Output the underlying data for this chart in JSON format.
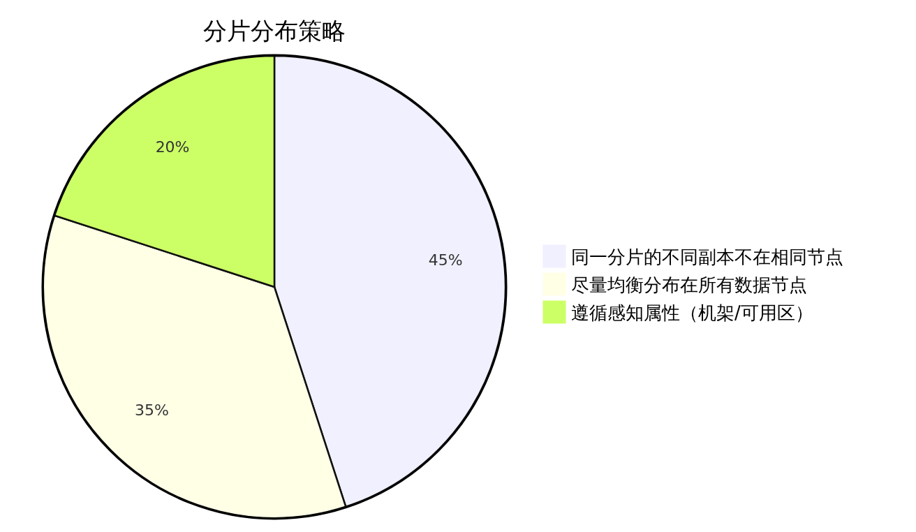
{
  "chart_data": {
    "type": "pie",
    "title": "分片分布策略",
    "categories": [
      "同一分片的不同副本不在相同节点",
      "尽量均衡分布在所有数据节点",
      "遵循感知属性（机架/可用区）"
    ],
    "values": [
      45,
      35,
      20
    ],
    "value_labels": [
      "45%",
      "35%",
      "20%"
    ],
    "colors": [
      "#f0f0ff",
      "#ffffe6",
      "#ccff66"
    ],
    "legend": "right"
  }
}
